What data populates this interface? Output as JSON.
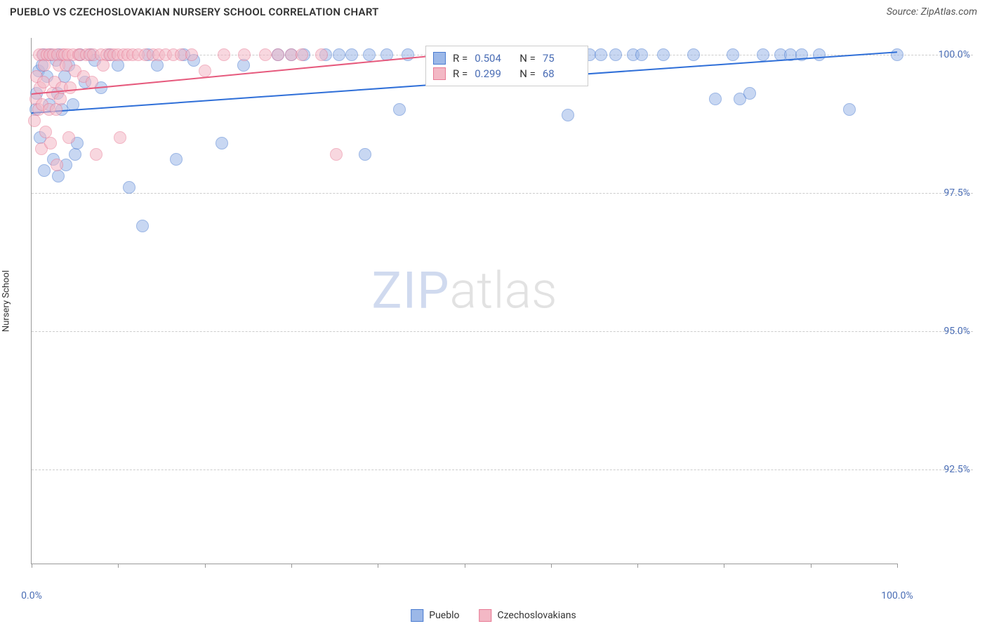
{
  "header": {
    "title": "PUEBLO VS CZECHOSLOVAKIAN NURSERY SCHOOL CORRELATION CHART",
    "source": "Source: ZipAtlas.com"
  },
  "chart": {
    "type": "scatter",
    "ylabel": "Nursery School",
    "xlim": [
      0,
      100
    ],
    "ylim": [
      90.8,
      100.3
    ],
    "xtick_labels": [
      "0.0%",
      "100.0%"
    ],
    "xtick_positions": [
      0,
      10,
      20,
      30,
      40,
      50,
      60,
      70,
      80,
      90,
      100
    ],
    "yticks": [
      92.5,
      95.0,
      97.5,
      100.0
    ],
    "ytick_labels": [
      "92.5%",
      "95.0%",
      "97.5%",
      "100.0%"
    ],
    "grid_color": "#cccccc",
    "axis_color": "#999999",
    "background_color": "#ffffff",
    "point_radius": 9,
    "point_opacity": 0.55,
    "series": [
      {
        "name": "Pueblo",
        "color_fill": "#9cb8e8",
        "color_stroke": "#4a7bd0",
        "trend_color": "#2f6fd8",
        "r": "0.504",
        "n": "75",
        "trend": {
          "x1": 0,
          "y1": 98.95,
          "x2": 100,
          "y2": 100.05
        },
        "points": [
          [
            0.5,
            99.0
          ],
          [
            0.6,
            99.3
          ],
          [
            0.8,
            99.7
          ],
          [
            1.0,
            98.5
          ],
          [
            1.2,
            99.8
          ],
          [
            1.4,
            100.0
          ],
          [
            1.5,
            97.9
          ],
          [
            1.8,
            99.6
          ],
          [
            2.0,
            99.1
          ],
          [
            2.2,
            100.0
          ],
          [
            2.5,
            98.1
          ],
          [
            2.8,
            99.9
          ],
          [
            3.0,
            99.3
          ],
          [
            3.1,
            97.8
          ],
          [
            3.2,
            100.0
          ],
          [
            3.5,
            99.0
          ],
          [
            3.8,
            99.6
          ],
          [
            4.0,
            98.0
          ],
          [
            4.3,
            99.8
          ],
          [
            4.8,
            99.1
          ],
          [
            5.0,
            98.2
          ],
          [
            5.3,
            98.4
          ],
          [
            5.6,
            100.0
          ],
          [
            6.2,
            99.5
          ],
          [
            6.8,
            100.0
          ],
          [
            7.3,
            99.9
          ],
          [
            8.0,
            99.4
          ],
          [
            9.0,
            100.0
          ],
          [
            10.0,
            99.8
          ],
          [
            11.3,
            97.6
          ],
          [
            12.8,
            96.9
          ],
          [
            13.5,
            100.0
          ],
          [
            14.5,
            99.8
          ],
          [
            16.7,
            98.1
          ],
          [
            17.6,
            100.0
          ],
          [
            18.7,
            99.9
          ],
          [
            22.0,
            98.4
          ],
          [
            24.5,
            99.8
          ],
          [
            28.5,
            100.0
          ],
          [
            30.0,
            100.0
          ],
          [
            31.5,
            100.0
          ],
          [
            34.0,
            100.0
          ],
          [
            35.5,
            100.0
          ],
          [
            37.0,
            100.0
          ],
          [
            38.5,
            98.2
          ],
          [
            39.0,
            100.0
          ],
          [
            41.0,
            100.0
          ],
          [
            42.5,
            99.0
          ],
          [
            43.5,
            100.0
          ],
          [
            49.2,
            100.0
          ],
          [
            50.0,
            100.0
          ],
          [
            51.5,
            100.0
          ],
          [
            54.5,
            100.0
          ],
          [
            56.5,
            100.0
          ],
          [
            58.0,
            100.0
          ],
          [
            61.5,
            100.0
          ],
          [
            62.0,
            98.9
          ],
          [
            64.5,
            100.0
          ],
          [
            65.8,
            100.0
          ],
          [
            67.5,
            100.0
          ],
          [
            69.5,
            100.0
          ],
          [
            70.5,
            100.0
          ],
          [
            73.0,
            100.0
          ],
          [
            76.5,
            100.0
          ],
          [
            79.0,
            99.2
          ],
          [
            81.0,
            100.0
          ],
          [
            81.8,
            99.2
          ],
          [
            83.0,
            99.3
          ],
          [
            84.5,
            100.0
          ],
          [
            86.5,
            100.0
          ],
          [
            87.7,
            100.0
          ],
          [
            89.0,
            100.0
          ],
          [
            91.0,
            100.0
          ],
          [
            94.5,
            99.0
          ],
          [
            100.0,
            100.0
          ]
        ]
      },
      {
        "name": "Czechoslovakians",
        "color_fill": "#f3b8c5",
        "color_stroke": "#e87a95",
        "trend_color": "#e65a7d",
        "r": "0.299",
        "n": "68",
        "trend": {
          "x1": 0,
          "y1": 99.3,
          "x2": 47,
          "y2": 100.0
        },
        "points": [
          [
            0.3,
            98.8
          ],
          [
            0.5,
            99.2
          ],
          [
            0.6,
            99.6
          ],
          [
            0.8,
            99.0
          ],
          [
            0.9,
            100.0
          ],
          [
            1.0,
            99.4
          ],
          [
            1.1,
            98.3
          ],
          [
            1.2,
            99.1
          ],
          [
            1.3,
            100.0
          ],
          [
            1.4,
            99.5
          ],
          [
            1.5,
            99.8
          ],
          [
            1.6,
            98.6
          ],
          [
            1.8,
            100.0
          ],
          [
            2.0,
            99.0
          ],
          [
            2.1,
            100.0
          ],
          [
            2.2,
            98.4
          ],
          [
            2.4,
            99.3
          ],
          [
            2.5,
            100.0
          ],
          [
            2.7,
            99.5
          ],
          [
            2.8,
            99.0
          ],
          [
            2.9,
            98.0
          ],
          [
            3.0,
            100.0
          ],
          [
            3.2,
            99.8
          ],
          [
            3.3,
            99.2
          ],
          [
            3.5,
            99.4
          ],
          [
            3.6,
            100.0
          ],
          [
            3.8,
            100.0
          ],
          [
            4.0,
            99.8
          ],
          [
            4.2,
            100.0
          ],
          [
            4.3,
            98.5
          ],
          [
            4.5,
            99.4
          ],
          [
            4.8,
            100.0
          ],
          [
            5.0,
            99.7
          ],
          [
            5.4,
            100.0
          ],
          [
            5.6,
            100.0
          ],
          [
            6.0,
            99.6
          ],
          [
            6.3,
            100.0
          ],
          [
            6.7,
            100.0
          ],
          [
            7.0,
            99.5
          ],
          [
            7.1,
            100.0
          ],
          [
            7.5,
            98.2
          ],
          [
            8.0,
            100.0
          ],
          [
            8.3,
            99.8
          ],
          [
            8.7,
            100.0
          ],
          [
            9.1,
            100.0
          ],
          [
            9.5,
            100.0
          ],
          [
            10.0,
            100.0
          ],
          [
            10.2,
            98.5
          ],
          [
            10.6,
            100.0
          ],
          [
            11.1,
            100.0
          ],
          [
            11.7,
            100.0
          ],
          [
            12.3,
            100.0
          ],
          [
            13.1,
            100.0
          ],
          [
            14.0,
            100.0
          ],
          [
            14.7,
            100.0
          ],
          [
            15.5,
            100.0
          ],
          [
            16.4,
            100.0
          ],
          [
            17.3,
            100.0
          ],
          [
            18.5,
            100.0
          ],
          [
            20.0,
            99.7
          ],
          [
            22.2,
            100.0
          ],
          [
            24.6,
            100.0
          ],
          [
            27.0,
            100.0
          ],
          [
            28.5,
            100.0
          ],
          [
            30.0,
            100.0
          ],
          [
            31.2,
            100.0
          ],
          [
            33.5,
            100.0
          ],
          [
            35.2,
            98.2
          ]
        ]
      }
    ],
    "stats_box": {
      "left_pct": 45.5,
      "top_pct": 1.5
    },
    "watermark": {
      "zip": "ZIP",
      "atlas": "atlas"
    }
  },
  "legend": {
    "items": [
      {
        "label": "Pueblo",
        "fill": "#9cb8e8",
        "stroke": "#4a7bd0"
      },
      {
        "label": "Czechoslovakians",
        "fill": "#f3b8c5",
        "stroke": "#e87a95"
      }
    ]
  }
}
